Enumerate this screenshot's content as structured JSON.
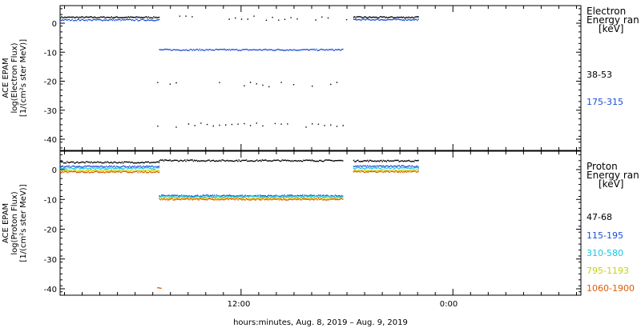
{
  "chart_data": [
    {
      "type": "scatter",
      "ylabel_lines": [
        "ACE EPAM",
        "log(Electron Flux)",
        "[1/(cm²s ster MeV)]"
      ],
      "ylim": [
        -45,
        5
      ],
      "yticks": [
        0,
        -10,
        -20,
        -30,
        -40
      ],
      "legend_title_lines": [
        "Electron",
        "Energy ran",
        "[keV]"
      ],
      "series": [
        {
          "name": "38-53",
          "color": "#000000",
          "segments": [
            {
              "x": [
                0.0,
                5.6
              ],
              "y": 2.2
            },
            {
              "x": [
                6.4,
                16.3
              ],
              "y": 2.0,
              "sparse": true
            },
            {
              "x": [
                16.6,
                20.3
              ],
              "y": 2.2
            },
            {
              "x": [
                5.5,
                16.0
              ],
              "y": -21.0,
              "sparse": true
            },
            {
              "x": [
                5.5,
                16.0
              ],
              "y": -35.0,
              "sparse": true
            }
          ]
        },
        {
          "name": "175-315",
          "color": "#1a4fd6",
          "segments": [
            {
              "x": [
                0.0,
                5.6
              ],
              "y": 1.3
            },
            {
              "x": [
                5.6,
                16.0
              ],
              "y": -9.0
            },
            {
              "x": [
                16.6,
                20.3
              ],
              "y": 1.4
            }
          ]
        }
      ]
    },
    {
      "type": "scatter",
      "ylabel_lines": [
        "ACE EPAM",
        "log(Proton Flux)",
        "[1/(cm²s ster MeV)]"
      ],
      "ylim": [
        -42,
        5
      ],
      "yticks": [
        0,
        -10,
        -20,
        -30,
        -40
      ],
      "legend_title_lines": [
        "Proton",
        "Energy ran",
        "[keV]"
      ],
      "series": [
        {
          "name": "47-68",
          "color": "#000000",
          "segments": [
            {
              "x": [
                0.0,
                5.6
              ],
              "y": 2.6
            },
            {
              "x": [
                5.6,
                16.0
              ],
              "y": 3.2
            },
            {
              "x": [
                16.6,
                20.3
              ],
              "y": 3.1
            }
          ]
        },
        {
          "name": "115-195",
          "color": "#1a4fd6",
          "segments": [
            {
              "x": [
                0.0,
                5.6
              ],
              "y": 1.2
            },
            {
              "x": [
                5.6,
                16.0
              ],
              "y": -8.6
            },
            {
              "x": [
                16.6,
                20.3
              ],
              "y": 1.3
            }
          ]
        },
        {
          "name": "310-580",
          "color": "#16c8e0",
          "segments": [
            {
              "x": [
                0.0,
                5.6
              ],
              "y": 0.6
            },
            {
              "x": [
                5.6,
                16.0
              ],
              "y": -8.9
            },
            {
              "x": [
                16.6,
                20.3
              ],
              "y": 0.7
            }
          ]
        },
        {
          "name": "795-1193",
          "color": "#c8d400",
          "segments": [
            {
              "x": [
                0.0,
                5.6
              ],
              "y": -0.2
            },
            {
              "x": [
                5.6,
                16.0
              ],
              "y": -9.4
            },
            {
              "x": [
                16.6,
                20.3
              ],
              "y": -0.1
            }
          ]
        },
        {
          "name": "1060-1900",
          "color": "#e05a00",
          "segments": [
            {
              "x": [
                0.0,
                5.6
              ],
              "y": -0.6
            },
            {
              "x": [
                5.6,
                16.0
              ],
              "y": -9.8
            },
            {
              "x": [
                16.6,
                20.3
              ],
              "y": -0.5
            },
            {
              "x": [
                5.5,
                5.7
              ],
              "y": -39.5
            }
          ]
        }
      ]
    }
  ],
  "xaxis": {
    "ticks": [
      {
        "label": "12:00"
      },
      {
        "label": "0:00"
      }
    ],
    "title": "hours:minutes, Aug.  8, 2019 – Aug.  9, 2019"
  }
}
